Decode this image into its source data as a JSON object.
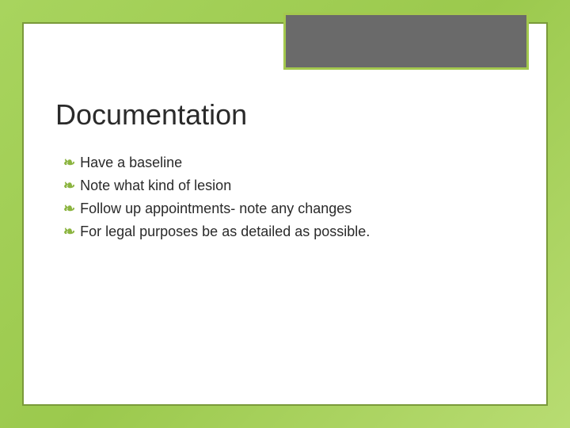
{
  "slide": {
    "title": "Documentation",
    "bullets": [
      "Have a baseline",
      "Note what kind of lesion",
      "Follow up appointments- note any changes",
      "For legal purposes be as detailed as possible."
    ],
    "colors": {
      "background_gradient_start": "#a8d45e",
      "background_gradient_end": "#b8dc72",
      "frame_border": "#7a9a3a",
      "header_box_fill": "#6a6a6a",
      "header_box_border": "#a3c84e",
      "bullet_color": "#8bb43f",
      "text_color": "#2a2a2a"
    },
    "typography": {
      "title_fontsize": 36,
      "body_fontsize": 18,
      "font_family": "Arial"
    },
    "bullet_glyph": "❧"
  }
}
